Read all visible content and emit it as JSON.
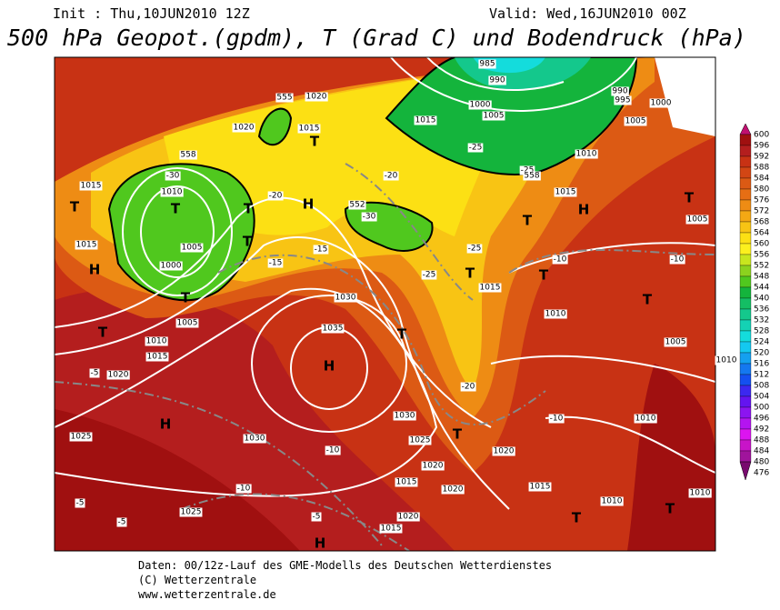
{
  "header": {
    "init": "Init : Thu,10JUN2010 12Z",
    "valid": "Valid: Wed,16JUN2010 00Z",
    "title": "500 hPa Geopot.(gpdm), T (Grad C) und Bodendruck (hPa)"
  },
  "colorbar": {
    "levels": [
      600,
      596,
      592,
      588,
      584,
      580,
      576,
      572,
      568,
      564,
      560,
      556,
      552,
      548,
      544,
      540,
      536,
      532,
      528,
      524,
      520,
      516,
      512,
      508,
      504,
      500,
      496,
      492,
      488,
      484,
      480,
      476
    ],
    "colors": [
      "#c01070",
      "#a01010",
      "#b41e1e",
      "#c83214",
      "#d24614",
      "#dc5a14",
      "#e66e14",
      "#ee8c14",
      "#f4a814",
      "#f8c414",
      "#fce014",
      "#fcf01e",
      "#c8e61e",
      "#8cd21e",
      "#50c81e",
      "#14b43c",
      "#14be64",
      "#14c88c",
      "#14d2b4",
      "#14dcdc",
      "#14c8f0",
      "#14a0f0",
      "#1478f0",
      "#1450f0",
      "#3c28f0",
      "#6414f0",
      "#8c14f0",
      "#b414f0",
      "#dc14f0",
      "#c814c8",
      "#a0149c",
      "#780a6e"
    ]
  },
  "map": {
    "labels": [
      "H",
      "1035",
      "1030",
      "1030",
      "1030",
      "1025",
      "1025",
      "1025",
      "1020",
      "1015",
      "1010",
      "1005",
      "1000",
      "1005",
      "1015",
      "1015",
      "1010",
      "1020",
      "1015",
      "1020",
      "1015",
      "1000",
      "1005",
      "990",
      "985",
      "995",
      "990",
      "1010",
      "1000",
      "1005",
      "1015",
      "1005",
      "1015",
      "1010",
      "1005",
      "1010",
      "1010",
      "1010",
      "1010",
      "1020",
      "1015",
      "1020",
      "1020",
      "1015",
      "1015",
      "1020",
      "-5",
      "-5",
      "-5",
      "-5",
      "-10",
      "-10",
      "-10",
      "-10",
      "-10",
      "-15",
      "-15",
      "-20",
      "-20",
      "-25",
      "-25",
      "-25",
      "-25",
      "-20",
      "-30",
      "-30",
      "H",
      "H",
      "H",
      "H",
      "H",
      "T",
      "T",
      "T",
      "T",
      "T",
      "T",
      "T",
      "T",
      "T",
      "T",
      "T",
      "T",
      "T",
      "T",
      "T",
      "T",
      "552",
      "558",
      "558",
      "555"
    ]
  },
  "footer": {
    "lines": [
      "Daten: 00/12z-Lauf des GME-Modells des Deutschen Wetterdienstes",
      "(C) Wetterzentrale",
      "www.wetterzentrale.de"
    ]
  }
}
